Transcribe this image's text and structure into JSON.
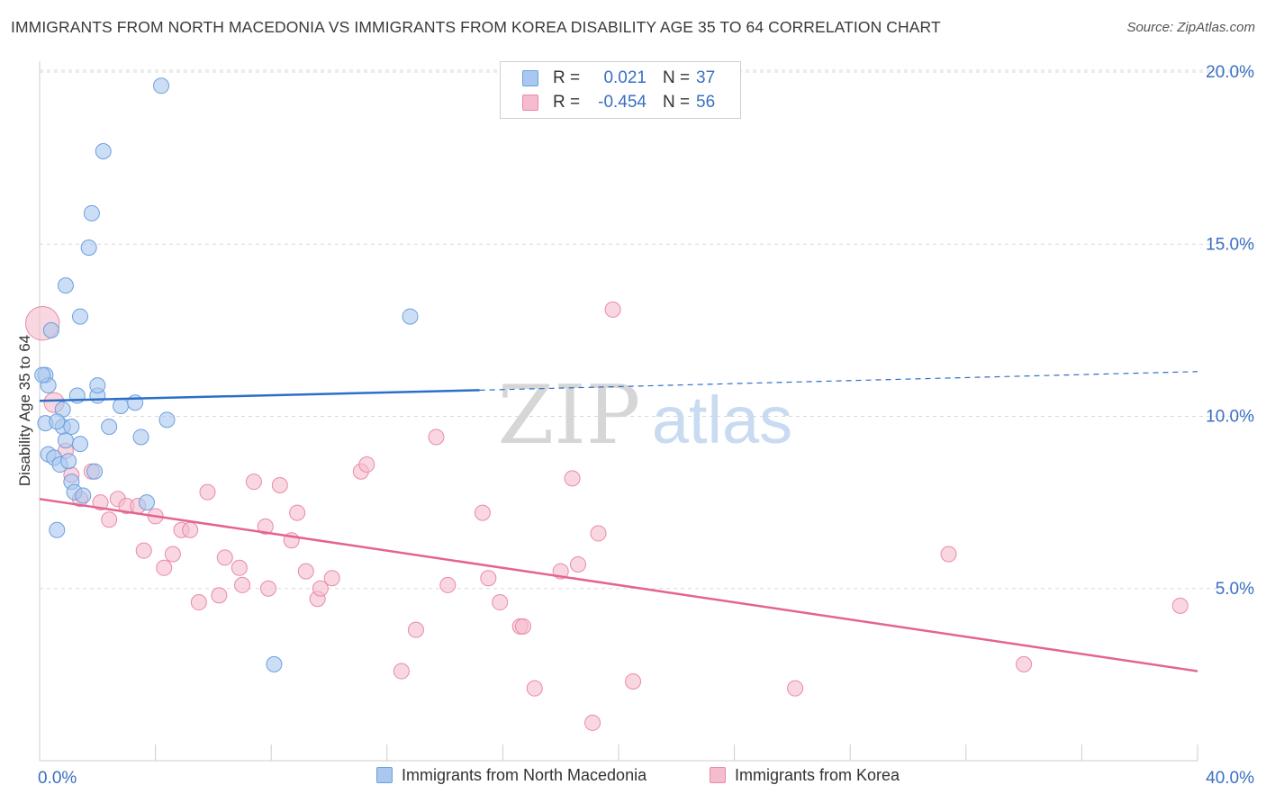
{
  "header": {
    "title": "IMMIGRANTS FROM NORTH MACEDONIA VS IMMIGRANTS FROM KOREA DISABILITY AGE 35 TO 64 CORRELATION CHART",
    "source": "Source: ZipAtlas.com"
  },
  "watermark": {
    "zip": "ZIP",
    "atlas": "atlas"
  },
  "legend": {
    "rows": [
      {
        "r_label": "R =",
        "r_value": "0.021",
        "n_label": "N =",
        "n_value": "37"
      },
      {
        "r_label": "R =",
        "r_value": "-0.454",
        "n_label": "N =",
        "n_value": "56"
      }
    ]
  },
  "bottom_legend": {
    "series1": "Immigrants from North Macedonia",
    "series2": "Immigrants from Korea"
  },
  "colors": {
    "blue_fill": "#aac8ef",
    "blue_stroke": "#6d9fdf",
    "blue_line": "#2c6fc9",
    "pink_fill": "#f5bccd",
    "pink_stroke": "#e98aa9",
    "pink_line": "#e4648f",
    "axis_text": "#3a6fc4",
    "grid": "#d9d9d9"
  },
  "chart_data": {
    "type": "scatter",
    "title": "IMMIGRANTS FROM NORTH MACEDONIA VS IMMIGRANTS FROM KOREA DISABILITY AGE 35 TO 64 CORRELATION CHART",
    "xlabel": "",
    "ylabel": "Disability Age 35 to 64",
    "xlim": [
      0,
      40
    ],
    "ylim": [
      0,
      20
    ],
    "x_tick_labels": [
      "0.0%",
      "40.0%"
    ],
    "y_ticks": [
      5,
      10,
      15,
      20
    ],
    "y_tick_labels": [
      "5.0%",
      "10.0%",
      "15.0%",
      "20.0%"
    ],
    "grid": true,
    "series": [
      {
        "name": "Immigrants from North Macedonia",
        "r": 0.021,
        "n": 37,
        "trend": {
          "x": [
            0,
            15.2,
            40
          ],
          "y": [
            10.45,
            10.76,
            11.3
          ],
          "solid_until": 15.2
        },
        "points": [
          {
            "x": 0.2,
            "y": 11.2,
            "s": 1
          },
          {
            "x": 0.3,
            "y": 10.9,
            "s": 1
          },
          {
            "x": 0.4,
            "y": 12.5,
            "s": 1
          },
          {
            "x": 0.2,
            "y": 9.8,
            "s": 1
          },
          {
            "x": 0.3,
            "y": 8.9,
            "s": 1
          },
          {
            "x": 0.5,
            "y": 8.8,
            "s": 1
          },
          {
            "x": 0.7,
            "y": 8.6,
            "s": 1
          },
          {
            "x": 0.8,
            "y": 9.7,
            "s": 1
          },
          {
            "x": 0.8,
            "y": 10.2,
            "s": 1
          },
          {
            "x": 0.9,
            "y": 9.3,
            "s": 1
          },
          {
            "x": 1.0,
            "y": 8.7,
            "s": 1
          },
          {
            "x": 1.1,
            "y": 9.7,
            "s": 1
          },
          {
            "x": 1.3,
            "y": 10.6,
            "s": 1
          },
          {
            "x": 1.4,
            "y": 9.2,
            "s": 1
          },
          {
            "x": 0.6,
            "y": 9.85,
            "s": 1
          },
          {
            "x": 1.1,
            "y": 8.1,
            "s": 1
          },
          {
            "x": 1.2,
            "y": 7.8,
            "s": 1
          },
          {
            "x": 1.5,
            "y": 7.7,
            "s": 1
          },
          {
            "x": 1.9,
            "y": 8.4,
            "s": 1
          },
          {
            "x": 0.6,
            "y": 6.7,
            "s": 1
          },
          {
            "x": 0.9,
            "y": 13.8,
            "s": 1
          },
          {
            "x": 1.4,
            "y": 12.9,
            "s": 1
          },
          {
            "x": 1.7,
            "y": 14.9,
            "s": 1
          },
          {
            "x": 1.8,
            "y": 15.9,
            "s": 1
          },
          {
            "x": 2.2,
            "y": 17.7,
            "s": 1
          },
          {
            "x": 4.2,
            "y": 19.6,
            "s": 1
          },
          {
            "x": 2.0,
            "y": 10.6,
            "s": 1
          },
          {
            "x": 2.0,
            "y": 10.9,
            "s": 1
          },
          {
            "x": 2.4,
            "y": 9.7,
            "s": 1
          },
          {
            "x": 2.8,
            "y": 10.3,
            "s": 1
          },
          {
            "x": 3.3,
            "y": 10.4,
            "s": 1
          },
          {
            "x": 3.5,
            "y": 9.4,
            "s": 1
          },
          {
            "x": 4.4,
            "y": 9.9,
            "s": 1
          },
          {
            "x": 3.7,
            "y": 7.5,
            "s": 1
          },
          {
            "x": 8.1,
            "y": 2.8,
            "s": 1
          },
          {
            "x": 12.8,
            "y": 12.9,
            "s": 1
          },
          {
            "x": 0.1,
            "y": 11.2,
            "s": 1
          }
        ]
      },
      {
        "name": "Immigrants from Korea",
        "r": -0.454,
        "n": 56,
        "trend": {
          "x": [
            0,
            40
          ],
          "y": [
            7.6,
            2.6
          ]
        },
        "points": [
          {
            "x": 0.1,
            "y": 12.7,
            "s": 2.2
          },
          {
            "x": 0.5,
            "y": 10.4,
            "s": 1.3
          },
          {
            "x": 0.9,
            "y": 9.0,
            "s": 1
          },
          {
            "x": 1.1,
            "y": 8.3,
            "s": 1
          },
          {
            "x": 1.4,
            "y": 7.6,
            "s": 1
          },
          {
            "x": 1.8,
            "y": 8.4,
            "s": 1
          },
          {
            "x": 2.1,
            "y": 7.5,
            "s": 1
          },
          {
            "x": 2.4,
            "y": 7.0,
            "s": 1
          },
          {
            "x": 2.7,
            "y": 7.6,
            "s": 1
          },
          {
            "x": 3.0,
            "y": 7.4,
            "s": 1
          },
          {
            "x": 3.4,
            "y": 7.4,
            "s": 1
          },
          {
            "x": 3.6,
            "y": 6.1,
            "s": 1
          },
          {
            "x": 4.0,
            "y": 7.1,
            "s": 1
          },
          {
            "x": 4.3,
            "y": 5.6,
            "s": 1
          },
          {
            "x": 4.6,
            "y": 6.0,
            "s": 1
          },
          {
            "x": 4.9,
            "y": 6.7,
            "s": 1
          },
          {
            "x": 5.2,
            "y": 6.7,
            "s": 1
          },
          {
            "x": 5.5,
            "y": 4.6,
            "s": 1
          },
          {
            "x": 5.8,
            "y": 7.8,
            "s": 1
          },
          {
            "x": 6.2,
            "y": 4.8,
            "s": 1
          },
          {
            "x": 6.4,
            "y": 5.9,
            "s": 1
          },
          {
            "x": 6.9,
            "y": 5.6,
            "s": 1
          },
          {
            "x": 7.0,
            "y": 5.1,
            "s": 1
          },
          {
            "x": 7.4,
            "y": 8.1,
            "s": 1
          },
          {
            "x": 7.8,
            "y": 6.8,
            "s": 1
          },
          {
            "x": 7.9,
            "y": 5.0,
            "s": 1
          },
          {
            "x": 8.3,
            "y": 8.0,
            "s": 1
          },
          {
            "x": 8.7,
            "y": 6.4,
            "s": 1
          },
          {
            "x": 8.9,
            "y": 7.2,
            "s": 1
          },
          {
            "x": 9.2,
            "y": 5.5,
            "s": 1
          },
          {
            "x": 9.6,
            "y": 4.7,
            "s": 1
          },
          {
            "x": 9.7,
            "y": 5.0,
            "s": 1
          },
          {
            "x": 10.1,
            "y": 5.3,
            "s": 1
          },
          {
            "x": 11.1,
            "y": 8.4,
            "s": 1
          },
          {
            "x": 11.3,
            "y": 8.6,
            "s": 1
          },
          {
            "x": 12.5,
            "y": 2.6,
            "s": 1
          },
          {
            "x": 13.0,
            "y": 3.8,
            "s": 1
          },
          {
            "x": 13.7,
            "y": 9.4,
            "s": 1
          },
          {
            "x": 14.1,
            "y": 5.1,
            "s": 1
          },
          {
            "x": 15.3,
            "y": 7.2,
            "s": 1
          },
          {
            "x": 15.5,
            "y": 5.3,
            "s": 1
          },
          {
            "x": 15.9,
            "y": 4.6,
            "s": 1
          },
          {
            "x": 16.6,
            "y": 3.9,
            "s": 1
          },
          {
            "x": 16.7,
            "y": 3.9,
            "s": 1
          },
          {
            "x": 17.1,
            "y": 2.1,
            "s": 1
          },
          {
            "x": 18.0,
            "y": 5.5,
            "s": 1
          },
          {
            "x": 18.4,
            "y": 8.2,
            "s": 1
          },
          {
            "x": 18.6,
            "y": 5.7,
            "s": 1
          },
          {
            "x": 19.1,
            "y": 1.1,
            "s": 1
          },
          {
            "x": 19.3,
            "y": 6.6,
            "s": 1
          },
          {
            "x": 19.8,
            "y": 13.1,
            "s": 1
          },
          {
            "x": 20.5,
            "y": 2.3,
            "s": 1
          },
          {
            "x": 26.1,
            "y": 2.1,
            "s": 1
          },
          {
            "x": 31.4,
            "y": 6.0,
            "s": 1
          },
          {
            "x": 34.0,
            "y": 2.8,
            "s": 1
          },
          {
            "x": 39.4,
            "y": 4.5,
            "s": 1
          }
        ]
      }
    ]
  }
}
